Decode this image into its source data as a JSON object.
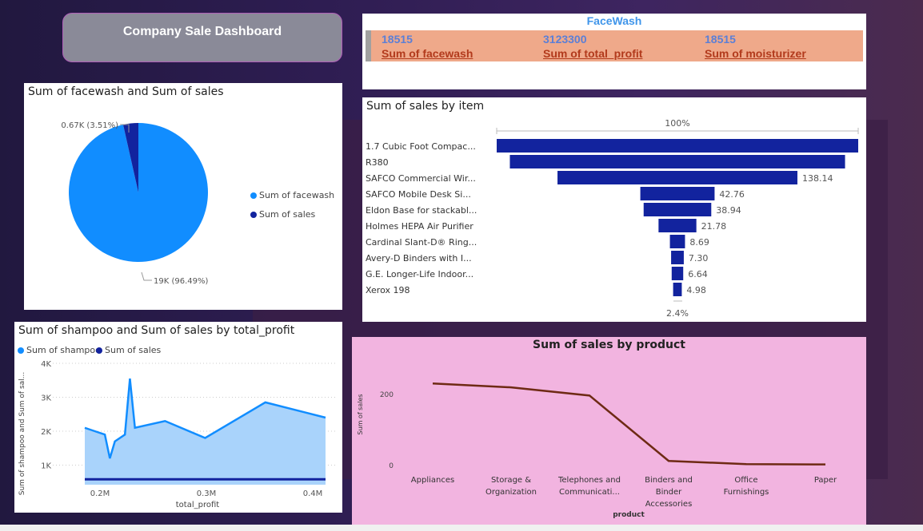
{
  "dashboard": {
    "title": "Company Sale Dashboard"
  },
  "kpi": {
    "header": "FaceWash",
    "cards": [
      {
        "value": "18515",
        "label": "Sum of facewash"
      },
      {
        "value": "3123300",
        "label": "Sum of total_profit"
      },
      {
        "value": "18515",
        "label": "Sum of moisturizer"
      }
    ]
  },
  "colors": {
    "primary": "#118dff",
    "secondary": "#12239e",
    "line": "#6e2a14",
    "kpi_band": "#efa98a",
    "product_panel": "#f2b4e0"
  },
  "chart_data": [
    {
      "type": "pie",
      "title": "Sum of facewash and Sum of sales",
      "slices": [
        {
          "name": "Sum of facewash",
          "value": 18515,
          "label": "19K (96.49%)",
          "color": "#118dff"
        },
        {
          "name": "Sum of sales",
          "value": 673.5,
          "label": "0.67K (3.51%)",
          "color": "#12239e"
        }
      ],
      "legend": "right"
    },
    {
      "type": "bar",
      "subtype": "funnel",
      "title": "Sum of sales by item",
      "top_label": "100%",
      "bottom_label": "2.4%",
      "categories": [
        "1.7 Cubic Foot Compac...",
        "R380",
        "SAFCO Commercial Wir...",
        "SAFCO Mobile Desk Si...",
        "Eldon Base for stackabl...",
        "Holmes HEPA Air Purifier",
        "Cardinal Slant-D® Ring...",
        "Avery-D Binders with I...",
        "G.E. Longer-Life Indoor...",
        "Xerox 198"
      ],
      "values": [
        208.16,
        193.0,
        138.14,
        42.76,
        38.94,
        21.78,
        8.69,
        7.3,
        6.64,
        4.98
      ],
      "value_labels": [
        "",
        "",
        "138.14",
        "42.76",
        "38.94",
        "21.78",
        "8.69",
        "7.30",
        "6.64",
        "4.98"
      ],
      "color": "#12239e"
    },
    {
      "type": "area",
      "title": "Sum of shampoo and Sum of sales by total_profit",
      "xlabel": "total_profit",
      "ylabel": "Sum of shampoo and Sum of sal...",
      "xlim": [
        0.18,
        0.42
      ],
      "ylim": [
        0.8,
        4
      ],
      "x_ticks": [
        0.2,
        0.3,
        0.4
      ],
      "x_tick_labels": [
        "0.2M",
        "0.3M",
        "0.4M"
      ],
      "y_ticks": [
        1,
        2,
        3,
        4
      ],
      "y_tick_labels": [
        "1K",
        "2K",
        "3K",
        "4K"
      ],
      "legend": "top-left",
      "series": [
        {
          "name": "Sum of shampoo",
          "color": "#118dff",
          "x": [
            0.18,
            0.19,
            0.2,
            0.205,
            0.21,
            0.22,
            0.225,
            0.23,
            0.26,
            0.3,
            0.36,
            0.42
          ],
          "y": [
            2.1,
            2.0,
            1.9,
            1.2,
            1.7,
            1.9,
            3.55,
            2.1,
            2.3,
            1.8,
            2.85,
            2.4
          ]
        },
        {
          "name": "Sum of sales",
          "color": "#12239e",
          "x": [
            0.18,
            0.42
          ],
          "y": [
            0.7,
            0.7
          ]
        }
      ],
      "grid": true
    },
    {
      "type": "line",
      "title": "Sum of sales by product",
      "xlabel": "product",
      "ylabel": "Sum of sales",
      "categories": [
        "Appliances",
        "Storage & Organization",
        "Telephones and Communicati...",
        "Binders and Binder Accessories",
        "Office Furnishings",
        "Paper"
      ],
      "category_lines": [
        [
          "Appliances"
        ],
        [
          "Storage &",
          "Organization"
        ],
        [
          "Telephones and",
          "Communicati..."
        ],
        [
          "Binders and",
          "Binder",
          "Accessories"
        ],
        [
          "Office",
          "Furnishings"
        ],
        [
          "Paper"
        ]
      ],
      "values": [
        231,
        220,
        197,
        13,
        4,
        3
      ],
      "y_ticks": [
        0,
        200
      ],
      "y_tick_labels": [
        "0",
        "200"
      ],
      "ylim": [
        0,
        260
      ],
      "color": "#6e2a14"
    }
  ]
}
